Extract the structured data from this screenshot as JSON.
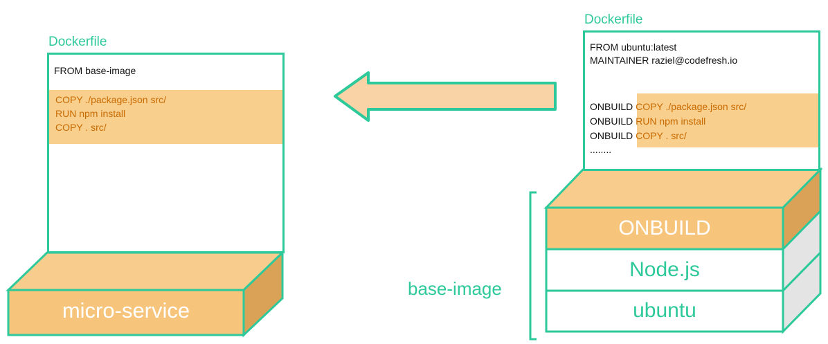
{
  "left": {
    "title": "Dockerfile",
    "from_line": "FROM base-image",
    "lines": [
      "COPY ./package.json src/",
      "RUN npm install",
      "COPY . src/"
    ],
    "block_label": "micro-service"
  },
  "right": {
    "title": "Dockerfile",
    "header_lines": [
      "FROM ubuntu:latest",
      "MAINTAINER raziel@codefresh.io"
    ],
    "onbuild_prefix": "ONBUILD",
    "onbuild_lines": [
      "COPY ./package.json src/",
      "RUN npm install",
      "COPY . src/"
    ],
    "ellipsis": "........",
    "layers": [
      "ONBUILD",
      "Node.js",
      "ubuntu"
    ],
    "bracket_label": "base-image"
  },
  "colors": {
    "accent_green": "#2ec99a",
    "highlight_orange": "#f9cf8e",
    "layer_orange": "#f7c47b",
    "orange_text": "#c86a00"
  }
}
